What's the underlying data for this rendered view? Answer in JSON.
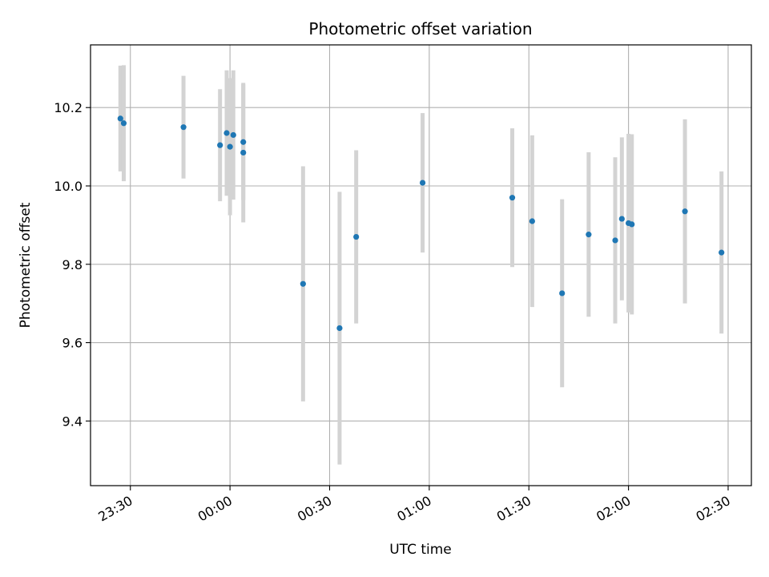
{
  "chart_data": {
    "type": "scatter",
    "title": "Photometric offset variation",
    "xlabel": "UTC time",
    "ylabel": "Photometric offset",
    "x_ticks": [
      "23:30",
      "00:00",
      "00:30",
      "01:00",
      "01:30",
      "02:00",
      "02:30"
    ],
    "y_ticks": [
      "9.4",
      "9.6",
      "9.8",
      "10.0",
      "10.2"
    ],
    "xlim": [
      "23:18",
      "02:37"
    ],
    "ylim": [
      9.235,
      10.36
    ],
    "grid": true,
    "colors": {
      "point": "#1f77b4",
      "errorbar": "#d3d3d3",
      "grid": "#b0b0b0"
    },
    "points": [
      {
        "x": "23:27",
        "y": 10.172,
        "yerr": 0.135
      },
      {
        "x": "23:28",
        "y": 10.16,
        "yerr": 0.148
      },
      {
        "x": "23:46",
        "y": 10.15,
        "yerr": 0.131
      },
      {
        "x": "23:57",
        "y": 10.104,
        "yerr": 0.143
      },
      {
        "x": "23:59",
        "y": 10.135,
        "yerr": 0.16
      },
      {
        "x": "24:00",
        "y": 10.1,
        "yerr": 0.175
      },
      {
        "x": "24:01",
        "y": 10.13,
        "yerr": 0.165
      },
      {
        "x": "24:04",
        "y": 10.112,
        "yerr": 0.148
      },
      {
        "x": "24:04",
        "y": 10.085,
        "yerr": 0.178
      },
      {
        "x": "24:22",
        "y": 9.75,
        "yerr": 0.3
      },
      {
        "x": "24:33",
        "y": 9.637,
        "yerr": 0.348
      },
      {
        "x": "24:38",
        "y": 9.87,
        "yerr": 0.221
      },
      {
        "x": "24:58",
        "y": 10.008,
        "yerr": 0.178
      },
      {
        "x": "25:25",
        "y": 9.97,
        "yerr": 0.177
      },
      {
        "x": "25:31",
        "y": 9.91,
        "yerr": 0.219
      },
      {
        "x": "25:40",
        "y": 9.726,
        "yerr": 0.24
      },
      {
        "x": "25:48",
        "y": 9.876,
        "yerr": 0.21
      },
      {
        "x": "25:56",
        "y": 9.861,
        "yerr": 0.212
      },
      {
        "x": "25:58",
        "y": 9.916,
        "yerr": 0.208
      },
      {
        "x": "26:00",
        "y": 9.905,
        "yerr": 0.228
      },
      {
        "x": "26:01",
        "y": 9.902,
        "yerr": 0.23
      },
      {
        "x": "26:17",
        "y": 9.935,
        "yerr": 0.235
      },
      {
        "x": "26:28",
        "y": 9.83,
        "yerr": 0.207
      }
    ]
  }
}
